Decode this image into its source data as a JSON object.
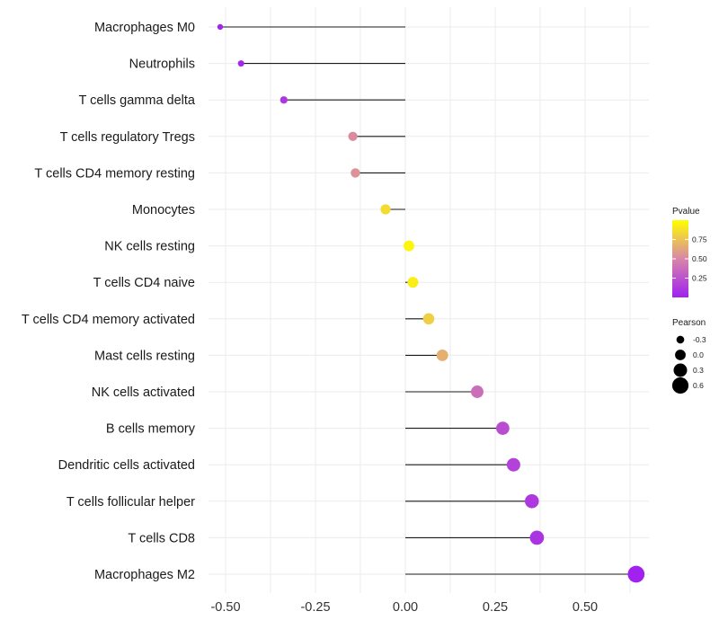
{
  "chart_data": {
    "type": "lollipop",
    "title": "",
    "xlabel": "",
    "ylabel": "",
    "xlim": [
      -0.55,
      0.68
    ],
    "x_ticks": [
      -0.5,
      -0.25,
      0.0,
      0.25,
      0.5
    ],
    "x_tick_labels": [
      "-0.50",
      "-0.25",
      "0.00",
      "0.25",
      "0.50"
    ],
    "grid": true,
    "categories": [
      "Macrophages M0",
      "Neutrophils",
      "T cells gamma delta",
      "T cells regulatory  Tregs",
      "T cells CD4 memory resting",
      "Monocytes",
      "NK cells resting",
      "T cells CD4 naive",
      "T cells CD4 memory activated",
      "Mast cells resting",
      "NK cells activated",
      "B cells memory",
      "Dendritic cells activated",
      "T cells follicular helper",
      "T cells CD8",
      "Macrophages M2"
    ],
    "values": [
      -0.515,
      -0.457,
      -0.338,
      -0.146,
      -0.139,
      -0.055,
      0.01,
      0.021,
      0.065,
      0.103,
      0.2,
      0.271,
      0.301,
      0.352,
      0.366,
      0.642
    ],
    "pvalues": [
      0.02,
      0.04,
      0.12,
      0.52,
      0.55,
      0.85,
      0.96,
      0.93,
      0.8,
      0.67,
      0.38,
      0.22,
      0.17,
      0.12,
      0.1,
      0.005
    ],
    "color_legend": {
      "title": "Pvalue",
      "ticks": [
        0.25,
        0.5,
        0.75
      ],
      "tick_labels": [
        "0.25",
        "0.50",
        "0.75"
      ],
      "low_color": "#a020f0",
      "mid_color": "#d886a8",
      "high_color": "#ffff00",
      "range": [
        0,
        1
      ]
    },
    "size_legend": {
      "title": "Pearson",
      "values": [
        -0.3,
        0.0,
        0.3,
        0.6
      ],
      "labels": [
        "-0.3",
        "0.0",
        "0.3",
        "0.6"
      ]
    },
    "colors": {
      "stem": "#1a1a1a",
      "grid": "#ebebeb"
    }
  }
}
